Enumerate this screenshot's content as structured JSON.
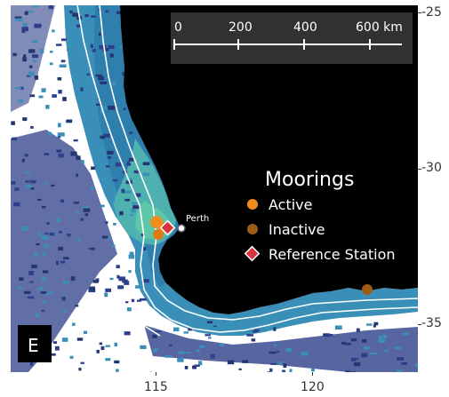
{
  "panel_label": "E",
  "scale_bar": {
    "ticks": [
      "0",
      "200",
      "400",
      "600 km"
    ]
  },
  "legend": {
    "title": "Moorings",
    "items": [
      {
        "label": "Active",
        "symbol": "circle",
        "color": "#f28c1e"
      },
      {
        "label": "Inactive",
        "symbol": "circle",
        "color": "#9c5c14"
      },
      {
        "label": "Reference Station",
        "symbol": "diamond",
        "color": "#d8343e"
      }
    ]
  },
  "city_label": "Perth",
  "axes": {
    "latitude_ticks": [
      "-25",
      "-30",
      "-35"
    ],
    "longitude_ticks": [
      "115",
      "120"
    ]
  },
  "colors": {
    "land": "#000000",
    "ocean_shallow": "#4fc0a8",
    "ocean_mid": "#3a8fb8",
    "ocean_deep": "#2d3f8a",
    "background": "#ffffff",
    "active": "#f28c1e",
    "inactive": "#9c5c14",
    "reference": "#d8343e"
  }
}
